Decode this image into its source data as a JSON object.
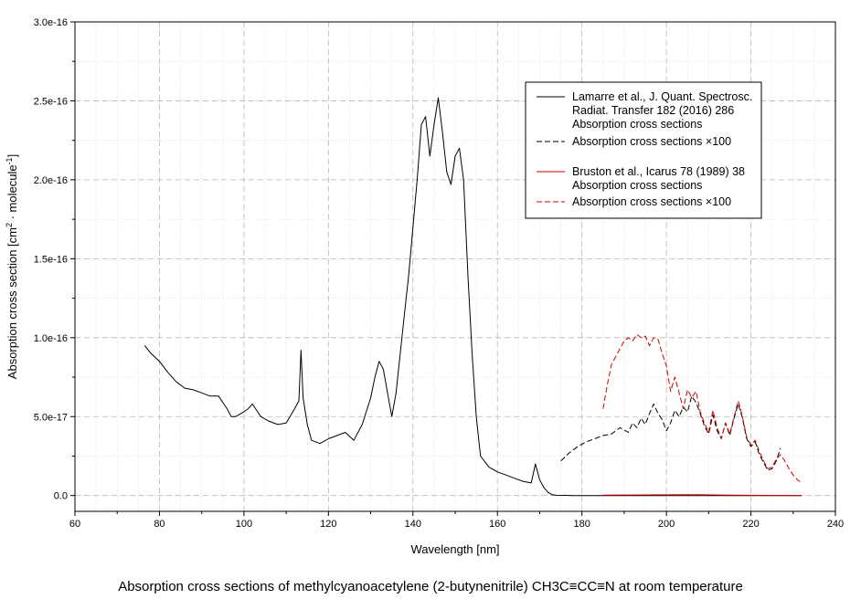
{
  "chart_data": {
    "type": "line",
    "caption": "Absorption cross sections of methylcyanoacetylene (2-butynenitrile) CH3C≡CC≡N at room temperature",
    "xlabel": "Wavelength [nm]",
    "ylabel_main": "Absorption cross section [cm",
    "ylabel_sup1": "2",
    "ylabel_mid": " · molecule",
    "ylabel_sup2": "-1",
    "ylabel_end": "]",
    "xlim": [
      60,
      240
    ],
    "ylim": [
      -1e-17,
      3e-16
    ],
    "x_ticks": [
      60,
      80,
      100,
      120,
      140,
      160,
      180,
      200,
      220,
      240
    ],
    "x_tick_labels": [
      "60",
      "80",
      "100",
      "120",
      "140",
      "160",
      "180",
      "200",
      "220",
      "240"
    ],
    "y_ticks": [
      0,
      5e-17,
      1e-16,
      1.5e-16,
      2e-16,
      2.5e-16,
      3e-16
    ],
    "y_tick_labels": [
      "0.0",
      "5.0e-17",
      "1.0e-16",
      "1.5e-16",
      "2.0e-16",
      "2.5e-16",
      "3.0e-16"
    ],
    "grid": true,
    "legend_position": "top-right",
    "legend": [
      {
        "lines": [
          "Lamarre et al., J. Quant. Spectrosc.",
          "Radiat. Transfer 182 (2016) 286",
          "Absorption cross sections"
        ],
        "color": "#000000",
        "dash": false
      },
      {
        "lines": [
          "Absorption cross sections ×100"
        ],
        "color": "#000000",
        "dash": true
      },
      {
        "lines": [
          "Bruston et al., Icarus 78 (1989) 38",
          "Absorption cross sections"
        ],
        "color": "#cc0000",
        "dash": false
      },
      {
        "lines": [
          "Absorption cross sections ×100"
        ],
        "color": "#cc0000",
        "dash": true
      }
    ],
    "series": [
      {
        "color": "#000000",
        "dash": false,
        "x": [
          76.5,
          78,
          80,
          82,
          84,
          86,
          88,
          90,
          92,
          94,
          96,
          97,
          98,
          100,
          101,
          102,
          104,
          106,
          108,
          110,
          112,
          113,
          113.5,
          114,
          115,
          116,
          118,
          120,
          122,
          124,
          126,
          128,
          130,
          131,
          132,
          133,
          134,
          135,
          136,
          137,
          138,
          139,
          140,
          141,
          142,
          143,
          144,
          145,
          146,
          147,
          148,
          149,
          150,
          151,
          152,
          153,
          154,
          155,
          156,
          158,
          160,
          162,
          164,
          166,
          168,
          169,
          170,
          171,
          172,
          173,
          174,
          176,
          178,
          180,
          185,
          200,
          232
        ],
        "y": [
          9.5e-17,
          9e-17,
          8.5e-17,
          7.8e-17,
          7.2e-17,
          6.8e-17,
          6.7e-17,
          6.5e-17,
          6.3e-17,
          6.3e-17,
          5.5e-17,
          5e-17,
          5e-17,
          5.3e-17,
          5.5e-17,
          5.8e-17,
          5e-17,
          4.7e-17,
          4.5e-17,
          4.6e-17,
          5.5e-17,
          6e-17,
          9.2e-17,
          6.2e-17,
          4.5e-17,
          3.5e-17,
          3.3e-17,
          3.6e-17,
          3.8e-17,
          4e-17,
          3.5e-17,
          4.5e-17,
          6.2e-17,
          7.5e-17,
          8.5e-17,
          8e-17,
          6.5e-17,
          5e-17,
          6.5e-17,
          9e-17,
          1.15e-16,
          1.4e-16,
          1.7e-16,
          2e-16,
          2.35e-16,
          2.4e-16,
          2.15e-16,
          2.35e-16,
          2.52e-16,
          2.3e-16,
          2.05e-16,
          1.97e-16,
          2.15e-16,
          2.2e-16,
          2e-16,
          1.4e-16,
          9e-17,
          5e-17,
          2.5e-17,
          1.8e-17,
          1.5e-17,
          1.3e-17,
          1.1e-17,
          9e-18,
          8e-18,
          2e-17,
          1e-17,
          5e-18,
          2e-18,
          5e-19,
          2e-19,
          1e-19,
          0,
          0,
          0,
          0,
          0
        ]
      },
      {
        "color": "#000000",
        "dash": true,
        "x": [
          175,
          177,
          179,
          181,
          183,
          185,
          187,
          189,
          191,
          192,
          193,
          194,
          195,
          196,
          197,
          198,
          199,
          200,
          201,
          202,
          203,
          204,
          205,
          206,
          207,
          208,
          209,
          210,
          211,
          212,
          213,
          214,
          215,
          216,
          217,
          218,
          219,
          220,
          221,
          222,
          223,
          224,
          225,
          226,
          227
        ],
        "y": [
          2.2e-17,
          2.7e-17,
          3.1e-17,
          3.4e-17,
          3.6e-17,
          3.8e-17,
          3.9e-17,
          4.3e-17,
          4e-17,
          4.6e-17,
          4.3e-17,
          4.9e-17,
          4.5e-17,
          5.2e-17,
          5.8e-17,
          5.2e-17,
          4.8e-17,
          4.1e-17,
          4.6e-17,
          5.4e-17,
          5e-17,
          5.6e-17,
          5.3e-17,
          6.3e-17,
          5.9e-17,
          5.2e-17,
          4.4e-17,
          3.9e-17,
          5.1e-17,
          4.1e-17,
          3.6e-17,
          4.6e-17,
          3.8e-17,
          4.9e-17,
          5.8e-17,
          4.9e-17,
          3.6e-17,
          3.1e-17,
          3.4e-17,
          2.6e-17,
          2.1e-17,
          1.6e-17,
          1.7e-17,
          2.2e-17,
          3e-17
        ]
      },
      {
        "color": "#cc0000",
        "dash": false,
        "x": [
          185,
          195,
          205,
          215,
          225,
          232
        ],
        "y": [
          3e-19,
          4e-19,
          6e-19,
          3e-19,
          1e-19,
          0
        ]
      },
      {
        "color": "#cc0000",
        "dash": true,
        "x": [
          185,
          186,
          187,
          188,
          189,
          190,
          191,
          192,
          193,
          194,
          195,
          196,
          197,
          198,
          199,
          200,
          201,
          202,
          203,
          204,
          205,
          206,
          207,
          208,
          209,
          210,
          211,
          212,
          213,
          214,
          215,
          216,
          217,
          218,
          219,
          220,
          221,
          222,
          223,
          224,
          225,
          226,
          227,
          228,
          229,
          230,
          231,
          232
        ],
        "y": [
          5.5e-17,
          7e-17,
          8.3e-17,
          8.8e-17,
          9.3e-17,
          9.8e-17,
          1e-16,
          9.8e-17,
          1.02e-16,
          1e-16,
          1.01e-16,
          9.5e-17,
          1e-16,
          9.9e-17,
          9e-17,
          8.2e-17,
          6.6e-17,
          7.5e-17,
          6.5e-17,
          5.5e-17,
          6.7e-17,
          6.2e-17,
          6.6e-17,
          5.3e-17,
          4.6e-17,
          4e-17,
          5.4e-17,
          4.3e-17,
          3.6e-17,
          4.6e-17,
          3.9e-17,
          5e-17,
          6e-17,
          5e-17,
          3.7e-17,
          3.2e-17,
          3.5e-17,
          2.8e-17,
          2.2e-17,
          1.7e-17,
          1.8e-17,
          2.3e-17,
          2.6e-17,
          2.2e-17,
          1.7e-17,
          1.3e-17,
          1e-17,
          8e-18
        ]
      }
    ]
  }
}
